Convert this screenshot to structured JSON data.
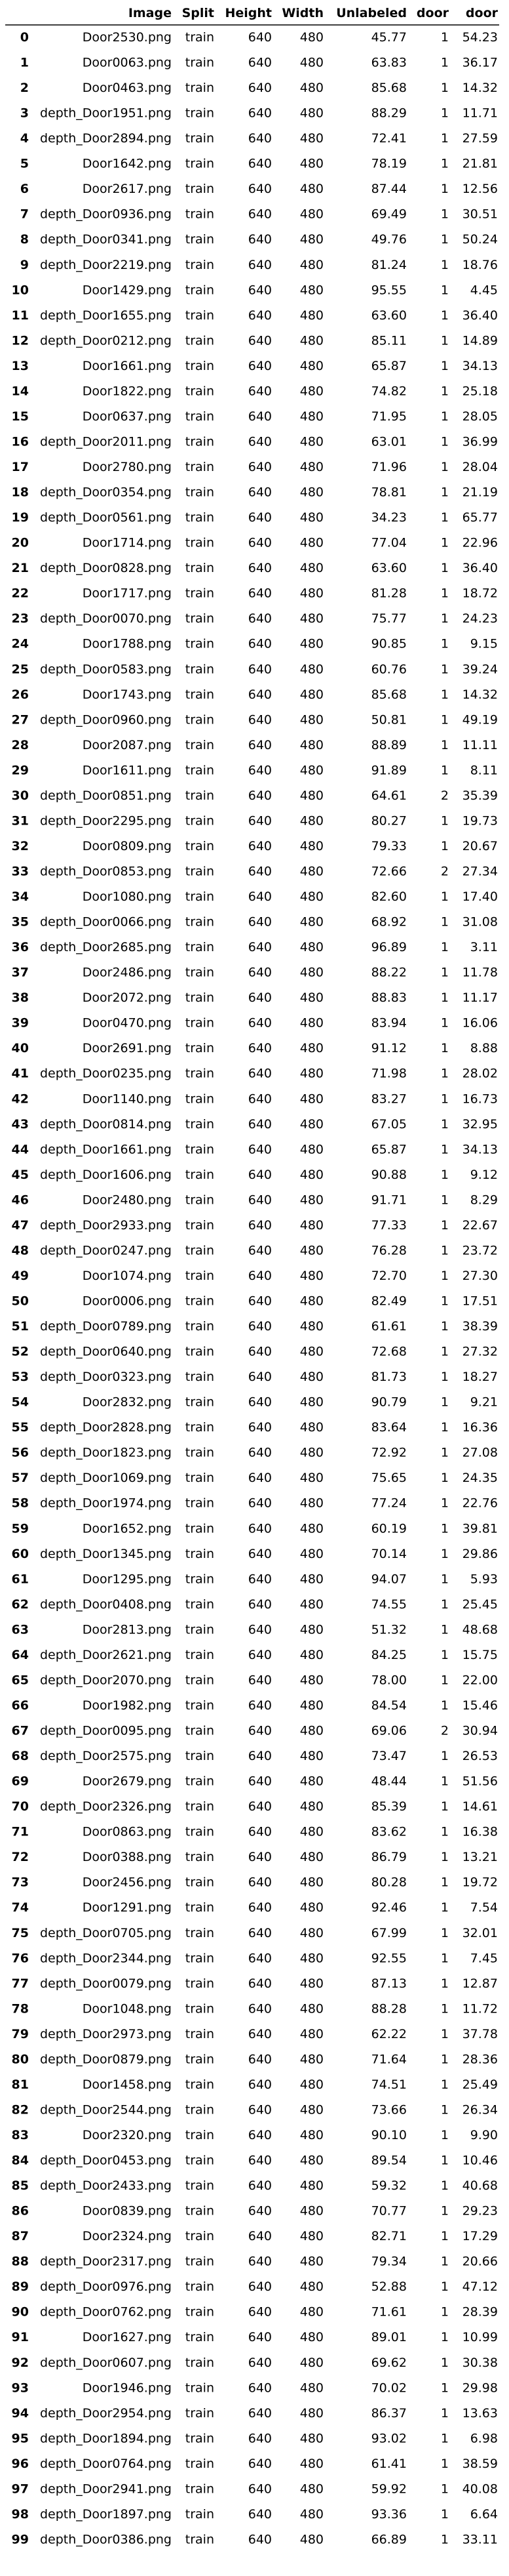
{
  "chart_data": {
    "type": "table",
    "columns": [
      "",
      "Image",
      "Split",
      "Height",
      "Width",
      "Unlabeled",
      "door",
      "door"
    ],
    "rows": [
      [
        "0",
        "Door2530.png",
        "train",
        "640",
        "480",
        "45.77",
        "1",
        "54.23"
      ],
      [
        "1",
        "Door0063.png",
        "train",
        "640",
        "480",
        "63.83",
        "1",
        "36.17"
      ],
      [
        "2",
        "Door0463.png",
        "train",
        "640",
        "480",
        "85.68",
        "1",
        "14.32"
      ],
      [
        "3",
        "depth_Door1951.png",
        "train",
        "640",
        "480",
        "88.29",
        "1",
        "11.71"
      ],
      [
        "4",
        "depth_Door2894.png",
        "train",
        "640",
        "480",
        "72.41",
        "1",
        "27.59"
      ],
      [
        "5",
        "Door1642.png",
        "train",
        "640",
        "480",
        "78.19",
        "1",
        "21.81"
      ],
      [
        "6",
        "Door2617.png",
        "train",
        "640",
        "480",
        "87.44",
        "1",
        "12.56"
      ],
      [
        "7",
        "depth_Door0936.png",
        "train",
        "640",
        "480",
        "69.49",
        "1",
        "30.51"
      ],
      [
        "8",
        "depth_Door0341.png",
        "train",
        "640",
        "480",
        "49.76",
        "1",
        "50.24"
      ],
      [
        "9",
        "depth_Door2219.png",
        "train",
        "640",
        "480",
        "81.24",
        "1",
        "18.76"
      ],
      [
        "10",
        "Door1429.png",
        "train",
        "640",
        "480",
        "95.55",
        "1",
        "4.45"
      ],
      [
        "11",
        "depth_Door1655.png",
        "train",
        "640",
        "480",
        "63.60",
        "1",
        "36.40"
      ],
      [
        "12",
        "depth_Door0212.png",
        "train",
        "640",
        "480",
        "85.11",
        "1",
        "14.89"
      ],
      [
        "13",
        "Door1661.png",
        "train",
        "640",
        "480",
        "65.87",
        "1",
        "34.13"
      ],
      [
        "14",
        "Door1822.png",
        "train",
        "640",
        "480",
        "74.82",
        "1",
        "25.18"
      ],
      [
        "15",
        "Door0637.png",
        "train",
        "640",
        "480",
        "71.95",
        "1",
        "28.05"
      ],
      [
        "16",
        "depth_Door2011.png",
        "train",
        "640",
        "480",
        "63.01",
        "1",
        "36.99"
      ],
      [
        "17",
        "Door2780.png",
        "train",
        "640",
        "480",
        "71.96",
        "1",
        "28.04"
      ],
      [
        "18",
        "depth_Door0354.png",
        "train",
        "640",
        "480",
        "78.81",
        "1",
        "21.19"
      ],
      [
        "19",
        "depth_Door0561.png",
        "train",
        "640",
        "480",
        "34.23",
        "1",
        "65.77"
      ],
      [
        "20",
        "Door1714.png",
        "train",
        "640",
        "480",
        "77.04",
        "1",
        "22.96"
      ],
      [
        "21",
        "depth_Door0828.png",
        "train",
        "640",
        "480",
        "63.60",
        "1",
        "36.40"
      ],
      [
        "22",
        "Door1717.png",
        "train",
        "640",
        "480",
        "81.28",
        "1",
        "18.72"
      ],
      [
        "23",
        "depth_Door0070.png",
        "train",
        "640",
        "480",
        "75.77",
        "1",
        "24.23"
      ],
      [
        "24",
        "Door1788.png",
        "train",
        "640",
        "480",
        "90.85",
        "1",
        "9.15"
      ],
      [
        "25",
        "depth_Door0583.png",
        "train",
        "640",
        "480",
        "60.76",
        "1",
        "39.24"
      ],
      [
        "26",
        "Door1743.png",
        "train",
        "640",
        "480",
        "85.68",
        "1",
        "14.32"
      ],
      [
        "27",
        "depth_Door0960.png",
        "train",
        "640",
        "480",
        "50.81",
        "1",
        "49.19"
      ],
      [
        "28",
        "Door2087.png",
        "train",
        "640",
        "480",
        "88.89",
        "1",
        "11.11"
      ],
      [
        "29",
        "Door1611.png",
        "train",
        "640",
        "480",
        "91.89",
        "1",
        "8.11"
      ],
      [
        "30",
        "depth_Door0851.png",
        "train",
        "640",
        "480",
        "64.61",
        "2",
        "35.39"
      ],
      [
        "31",
        "depth_Door2295.png",
        "train",
        "640",
        "480",
        "80.27",
        "1",
        "19.73"
      ],
      [
        "32",
        "Door0809.png",
        "train",
        "640",
        "480",
        "79.33",
        "1",
        "20.67"
      ],
      [
        "33",
        "depth_Door0853.png",
        "train",
        "640",
        "480",
        "72.66",
        "2",
        "27.34"
      ],
      [
        "34",
        "Door1080.png",
        "train",
        "640",
        "480",
        "82.60",
        "1",
        "17.40"
      ],
      [
        "35",
        "depth_Door0066.png",
        "train",
        "640",
        "480",
        "68.92",
        "1",
        "31.08"
      ],
      [
        "36",
        "depth_Door2685.png",
        "train",
        "640",
        "480",
        "96.89",
        "1",
        "3.11"
      ],
      [
        "37",
        "Door2486.png",
        "train",
        "640",
        "480",
        "88.22",
        "1",
        "11.78"
      ],
      [
        "38",
        "Door2072.png",
        "train",
        "640",
        "480",
        "88.83",
        "1",
        "11.17"
      ],
      [
        "39",
        "Door0470.png",
        "train",
        "640",
        "480",
        "83.94",
        "1",
        "16.06"
      ],
      [
        "40",
        "Door2691.png",
        "train",
        "640",
        "480",
        "91.12",
        "1",
        "8.88"
      ],
      [
        "41",
        "depth_Door0235.png",
        "train",
        "640",
        "480",
        "71.98",
        "1",
        "28.02"
      ],
      [
        "42",
        "Door1140.png",
        "train",
        "640",
        "480",
        "83.27",
        "1",
        "16.73"
      ],
      [
        "43",
        "depth_Door0814.png",
        "train",
        "640",
        "480",
        "67.05",
        "1",
        "32.95"
      ],
      [
        "44",
        "depth_Door1661.png",
        "train",
        "640",
        "480",
        "65.87",
        "1",
        "34.13"
      ],
      [
        "45",
        "depth_Door1606.png",
        "train",
        "640",
        "480",
        "90.88",
        "1",
        "9.12"
      ],
      [
        "46",
        "Door2480.png",
        "train",
        "640",
        "480",
        "91.71",
        "1",
        "8.29"
      ],
      [
        "47",
        "depth_Door2933.png",
        "train",
        "640",
        "480",
        "77.33",
        "1",
        "22.67"
      ],
      [
        "48",
        "depth_Door0247.png",
        "train",
        "640",
        "480",
        "76.28",
        "1",
        "23.72"
      ],
      [
        "49",
        "Door1074.png",
        "train",
        "640",
        "480",
        "72.70",
        "1",
        "27.30"
      ],
      [
        "50",
        "Door0006.png",
        "train",
        "640",
        "480",
        "82.49",
        "1",
        "17.51"
      ],
      [
        "51",
        "depth_Door0789.png",
        "train",
        "640",
        "480",
        "61.61",
        "1",
        "38.39"
      ],
      [
        "52",
        "depth_Door0640.png",
        "train",
        "640",
        "480",
        "72.68",
        "1",
        "27.32"
      ],
      [
        "53",
        "depth_Door0323.png",
        "train",
        "640",
        "480",
        "81.73",
        "1",
        "18.27"
      ],
      [
        "54",
        "Door2832.png",
        "train",
        "640",
        "480",
        "90.79",
        "1",
        "9.21"
      ],
      [
        "55",
        "depth_Door2828.png",
        "train",
        "640",
        "480",
        "83.64",
        "1",
        "16.36"
      ],
      [
        "56",
        "depth_Door1823.png",
        "train",
        "640",
        "480",
        "72.92",
        "1",
        "27.08"
      ],
      [
        "57",
        "depth_Door1069.png",
        "train",
        "640",
        "480",
        "75.65",
        "1",
        "24.35"
      ],
      [
        "58",
        "depth_Door1974.png",
        "train",
        "640",
        "480",
        "77.24",
        "1",
        "22.76"
      ],
      [
        "59",
        "Door1652.png",
        "train",
        "640",
        "480",
        "60.19",
        "1",
        "39.81"
      ],
      [
        "60",
        "depth_Door1345.png",
        "train",
        "640",
        "480",
        "70.14",
        "1",
        "29.86"
      ],
      [
        "61",
        "Door1295.png",
        "train",
        "640",
        "480",
        "94.07",
        "1",
        "5.93"
      ],
      [
        "62",
        "depth_Door0408.png",
        "train",
        "640",
        "480",
        "74.55",
        "1",
        "25.45"
      ],
      [
        "63",
        "Door2813.png",
        "train",
        "640",
        "480",
        "51.32",
        "1",
        "48.68"
      ],
      [
        "64",
        "depth_Door2621.png",
        "train",
        "640",
        "480",
        "84.25",
        "1",
        "15.75"
      ],
      [
        "65",
        "depth_Door2070.png",
        "train",
        "640",
        "480",
        "78.00",
        "1",
        "22.00"
      ],
      [
        "66",
        "Door1982.png",
        "train",
        "640",
        "480",
        "84.54",
        "1",
        "15.46"
      ],
      [
        "67",
        "depth_Door0095.png",
        "train",
        "640",
        "480",
        "69.06",
        "2",
        "30.94"
      ],
      [
        "68",
        "depth_Door2575.png",
        "train",
        "640",
        "480",
        "73.47",
        "1",
        "26.53"
      ],
      [
        "69",
        "Door2679.png",
        "train",
        "640",
        "480",
        "48.44",
        "1",
        "51.56"
      ],
      [
        "70",
        "depth_Door2326.png",
        "train",
        "640",
        "480",
        "85.39",
        "1",
        "14.61"
      ],
      [
        "71",
        "Door0863.png",
        "train",
        "640",
        "480",
        "83.62",
        "1",
        "16.38"
      ],
      [
        "72",
        "Door0388.png",
        "train",
        "640",
        "480",
        "86.79",
        "1",
        "13.21"
      ],
      [
        "73",
        "Door2456.png",
        "train",
        "640",
        "480",
        "80.28",
        "1",
        "19.72"
      ],
      [
        "74",
        "Door1291.png",
        "train",
        "640",
        "480",
        "92.46",
        "1",
        "7.54"
      ],
      [
        "75",
        "depth_Door0705.png",
        "train",
        "640",
        "480",
        "67.99",
        "1",
        "32.01"
      ],
      [
        "76",
        "depth_Door2344.png",
        "train",
        "640",
        "480",
        "92.55",
        "1",
        "7.45"
      ],
      [
        "77",
        "depth_Door0079.png",
        "train",
        "640",
        "480",
        "87.13",
        "1",
        "12.87"
      ],
      [
        "78",
        "Door1048.png",
        "train",
        "640",
        "480",
        "88.28",
        "1",
        "11.72"
      ],
      [
        "79",
        "depth_Door2973.png",
        "train",
        "640",
        "480",
        "62.22",
        "1",
        "37.78"
      ],
      [
        "80",
        "depth_Door0879.png",
        "train",
        "640",
        "480",
        "71.64",
        "1",
        "28.36"
      ],
      [
        "81",
        "Door1458.png",
        "train",
        "640",
        "480",
        "74.51",
        "1",
        "25.49"
      ],
      [
        "82",
        "depth_Door2544.png",
        "train",
        "640",
        "480",
        "73.66",
        "1",
        "26.34"
      ],
      [
        "83",
        "Door2320.png",
        "train",
        "640",
        "480",
        "90.10",
        "1",
        "9.90"
      ],
      [
        "84",
        "depth_Door0453.png",
        "train",
        "640",
        "480",
        "89.54",
        "1",
        "10.46"
      ],
      [
        "85",
        "depth_Door2433.png",
        "train",
        "640",
        "480",
        "59.32",
        "1",
        "40.68"
      ],
      [
        "86",
        "Door0839.png",
        "train",
        "640",
        "480",
        "70.77",
        "1",
        "29.23"
      ],
      [
        "87",
        "Door2324.png",
        "train",
        "640",
        "480",
        "82.71",
        "1",
        "17.29"
      ],
      [
        "88",
        "depth_Door2317.png",
        "train",
        "640",
        "480",
        "79.34",
        "1",
        "20.66"
      ],
      [
        "89",
        "depth_Door0976.png",
        "train",
        "640",
        "480",
        "52.88",
        "1",
        "47.12"
      ],
      [
        "90",
        "depth_Door0762.png",
        "train",
        "640",
        "480",
        "71.61",
        "1",
        "28.39"
      ],
      [
        "91",
        "Door1627.png",
        "train",
        "640",
        "480",
        "89.01",
        "1",
        "10.99"
      ],
      [
        "92",
        "depth_Door0607.png",
        "train",
        "640",
        "480",
        "69.62",
        "1",
        "30.38"
      ],
      [
        "93",
        "Door1946.png",
        "train",
        "640",
        "480",
        "70.02",
        "1",
        "29.98"
      ],
      [
        "94",
        "depth_Door2954.png",
        "train",
        "640",
        "480",
        "86.37",
        "1",
        "13.63"
      ],
      [
        "95",
        "depth_Door1894.png",
        "train",
        "640",
        "480",
        "93.02",
        "1",
        "6.98"
      ],
      [
        "96",
        "depth_Door0764.png",
        "train",
        "640",
        "480",
        "61.41",
        "1",
        "38.59"
      ],
      [
        "97",
        "depth_Door2941.png",
        "train",
        "640",
        "480",
        "59.92",
        "1",
        "40.08"
      ],
      [
        "98",
        "depth_Door1897.png",
        "train",
        "640",
        "480",
        "93.36",
        "1",
        "6.64"
      ],
      [
        "99",
        "depth_Door0386.png",
        "train",
        "640",
        "480",
        "66.89",
        "1",
        "33.11"
      ]
    ]
  }
}
